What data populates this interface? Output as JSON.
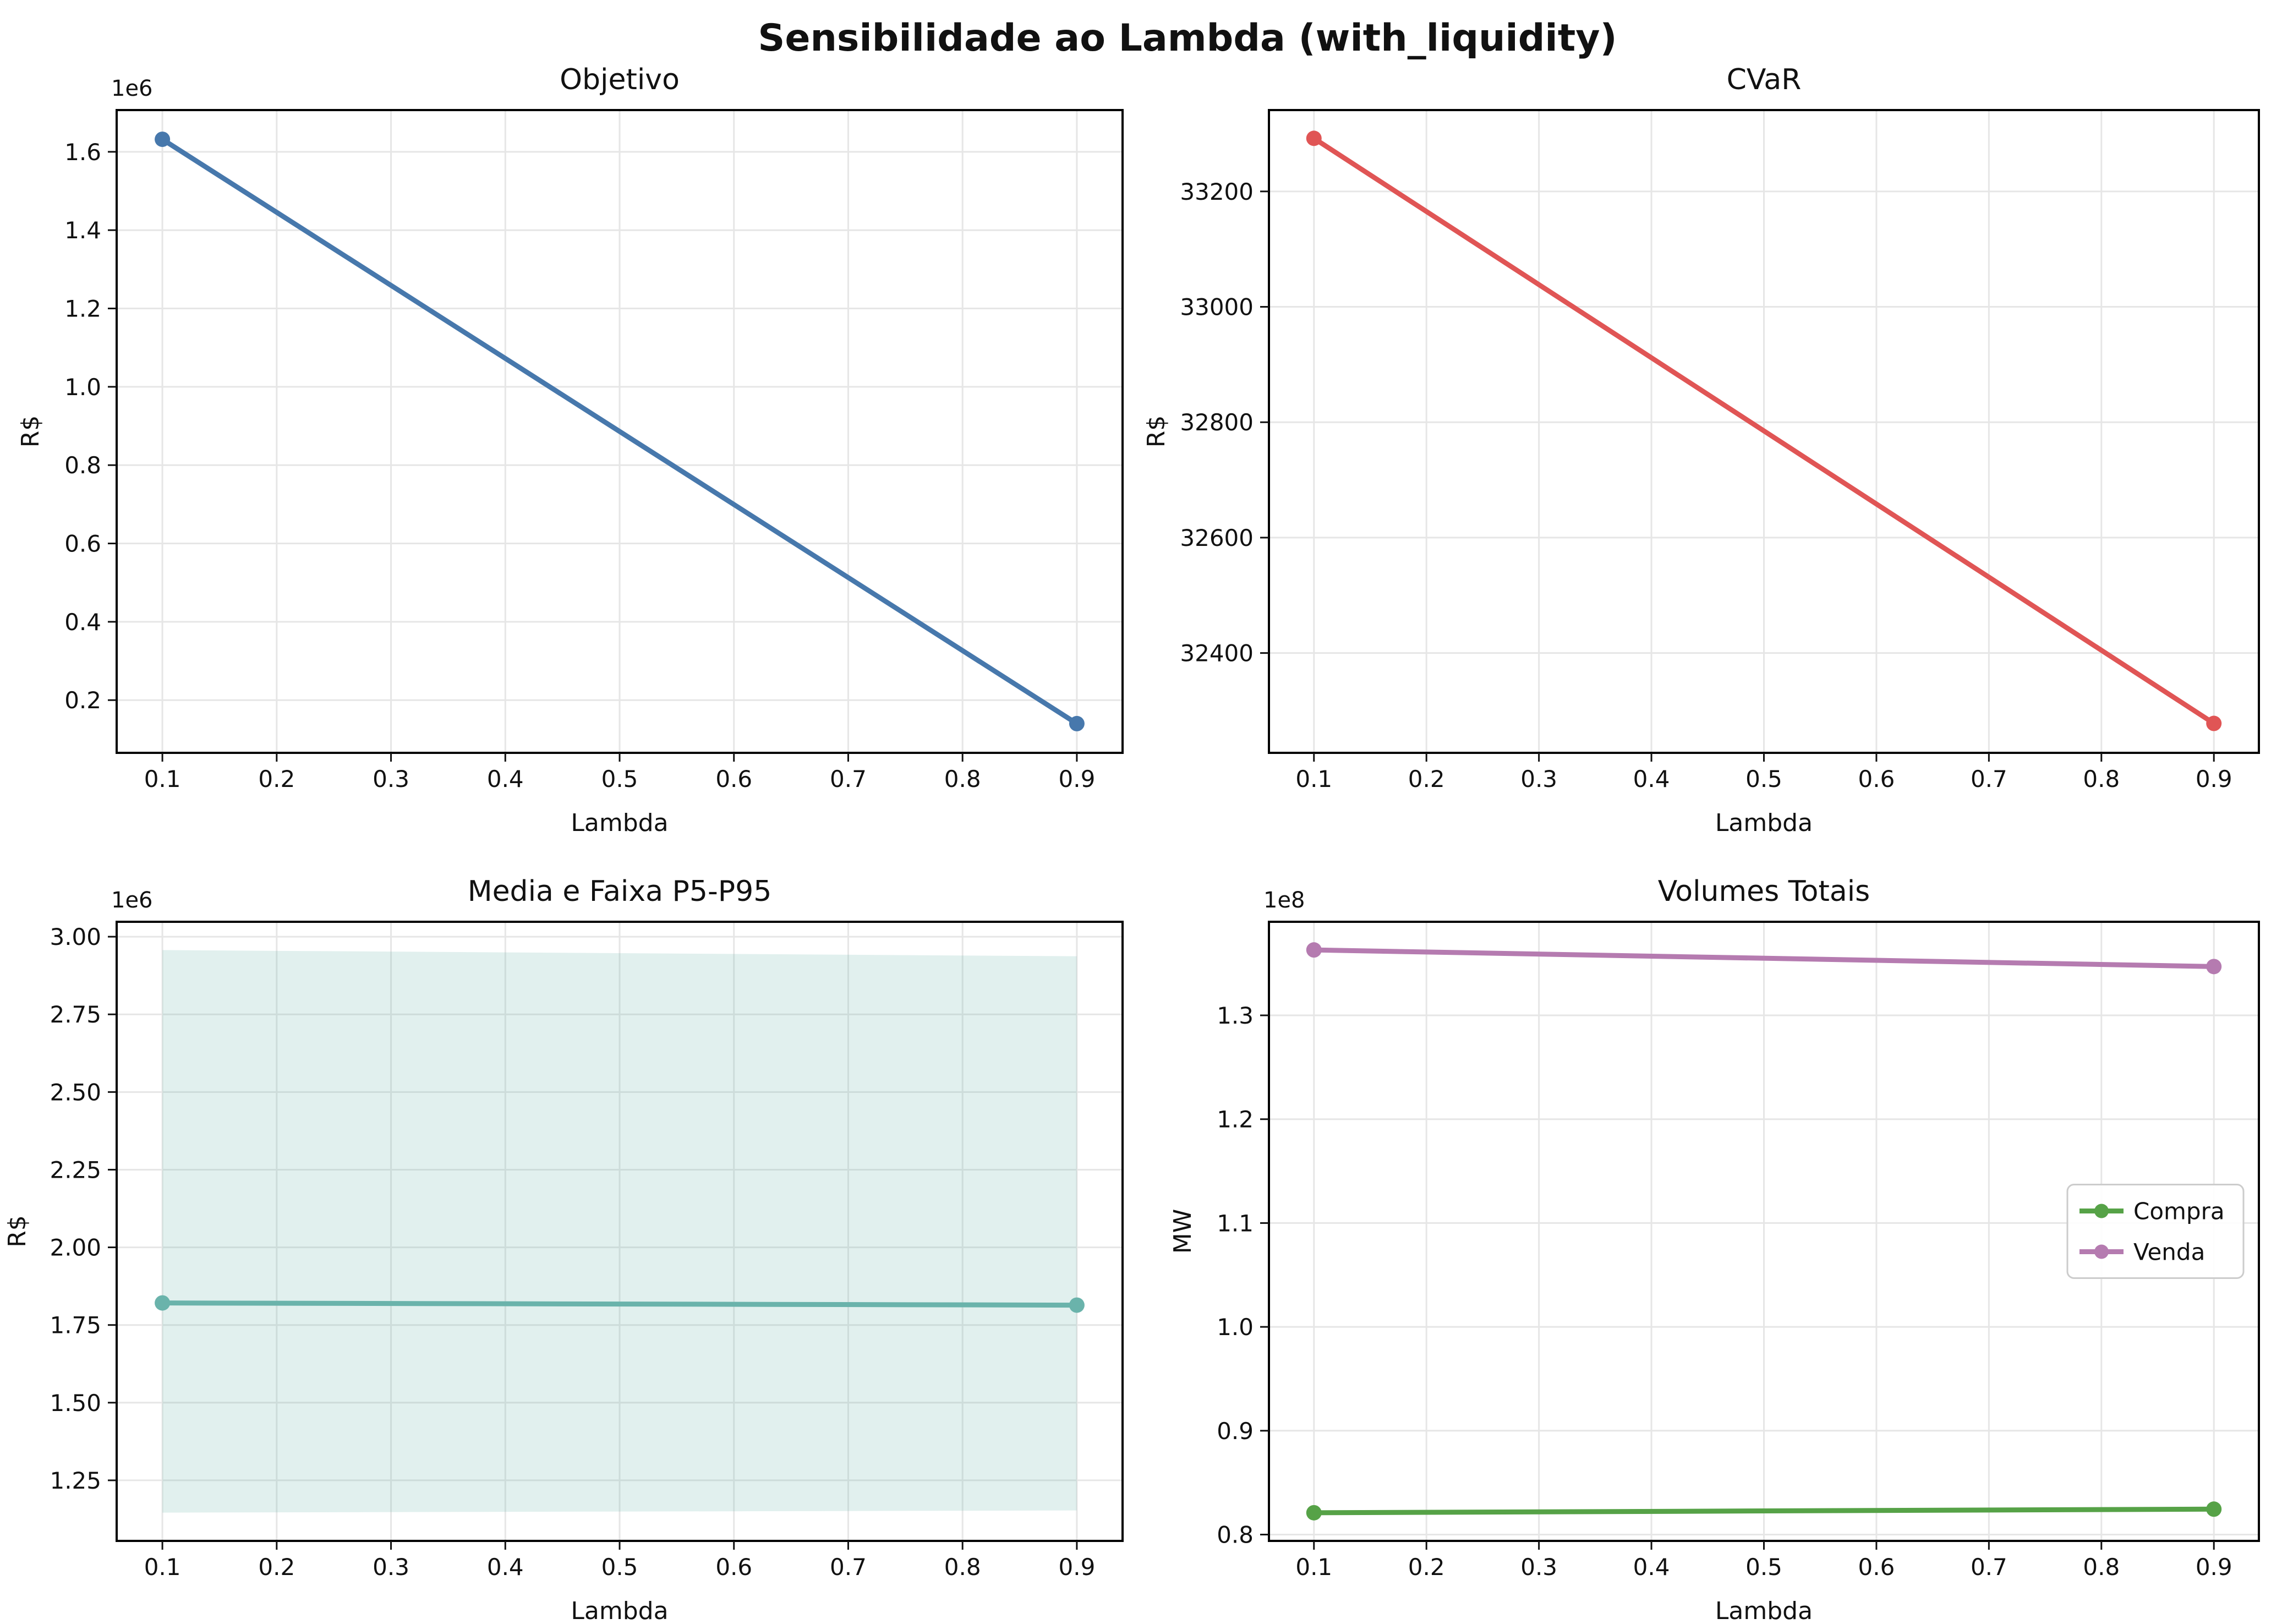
{
  "figure": {
    "title": "Sensibilidade ao Lambda (with_liquidity)"
  },
  "colors": {
    "objetivo_line": "#4778ac",
    "cvar_line": "#e05555",
    "media_line": "#6ab3ab",
    "band_fill": "#6ab3ab",
    "compra_line": "#56a247",
    "venda_line": "#b57bb0",
    "grid": "#e6e6e6",
    "spine": "#000000",
    "legend_border": "#cccccc"
  },
  "chart_data": [
    {
      "id": "objetivo",
      "type": "line",
      "title": "Objetivo",
      "xlabel": "Lambda",
      "ylabel": "R$",
      "x": [
        0.1,
        0.9
      ],
      "xlim": [
        0.06,
        0.94
      ],
      "xticks": [
        0.1,
        0.2,
        0.3,
        0.4,
        0.5,
        0.6,
        0.7,
        0.8,
        0.9
      ],
      "xtick_labels": [
        "0.1",
        "0.2",
        "0.3",
        "0.4",
        "0.5",
        "0.6",
        "0.7",
        "0.8",
        "0.9"
      ],
      "ylim": [
        65400,
        1706600
      ],
      "yticks": [
        200000,
        400000,
        600000,
        800000,
        1000000,
        1200000,
        1400000,
        1600000
      ],
      "ytick_labels": [
        "0.2",
        "0.4",
        "0.6",
        "0.8",
        "1.0",
        "1.2",
        "1.4",
        "1.6"
      ],
      "y_offset_text": "1e6",
      "grid": true,
      "series": [
        {
          "name": "Objetivo",
          "color": "#4778ac",
          "values": [
            1632000,
            140000
          ]
        }
      ]
    },
    {
      "id": "cvar",
      "type": "line",
      "title": "CVaR",
      "xlabel": "Lambda",
      "ylabel": "R$",
      "x": [
        0.1,
        0.9
      ],
      "xlim": [
        0.06,
        0.94
      ],
      "xticks": [
        0.1,
        0.2,
        0.3,
        0.4,
        0.5,
        0.6,
        0.7,
        0.8,
        0.9
      ],
      "xtick_labels": [
        "0.1",
        "0.2",
        "0.3",
        "0.4",
        "0.5",
        "0.6",
        "0.7",
        "0.8",
        "0.9"
      ],
      "ylim": [
        32227,
        33341
      ],
      "yticks": [
        32400,
        32600,
        32800,
        33000,
        33200
      ],
      "ytick_labels": [
        "32400",
        "32600",
        "32800",
        "33000",
        "33200"
      ],
      "y_offset_text": "",
      "grid": true,
      "series": [
        {
          "name": "CVaR",
          "color": "#e05555",
          "values": [
            33292,
            32278
          ]
        }
      ]
    },
    {
      "id": "media",
      "type": "line",
      "title": "Media e Faixa P5-P95",
      "xlabel": "Lambda",
      "ylabel": "R$",
      "x": [
        0.1,
        0.9
      ],
      "xlim": [
        0.06,
        0.94
      ],
      "xticks": [
        0.1,
        0.2,
        0.3,
        0.4,
        0.5,
        0.6,
        0.7,
        0.8,
        0.9
      ],
      "xtick_labels": [
        "0.1",
        "0.2",
        "0.3",
        "0.4",
        "0.5",
        "0.6",
        "0.7",
        "0.8",
        "0.9"
      ],
      "ylim": [
        1055000,
        3048000
      ],
      "yticks": [
        1250000,
        1500000,
        1750000,
        2000000,
        2250000,
        2500000,
        2750000,
        3000000
      ],
      "ytick_labels": [
        "1.25",
        "1.50",
        "1.75",
        "2.00",
        "2.25",
        "2.50",
        "2.75",
        "3.00"
      ],
      "y_offset_text": "1e6",
      "grid": true,
      "band": {
        "name": "Faixa P5-P95",
        "color": "#6ab3ab",
        "opacity": 0.2,
        "upper": [
          2957000,
          2937000
        ],
        "lower": [
          1146000,
          1153000
        ]
      },
      "series": [
        {
          "name": "Media",
          "color": "#6ab3ab",
          "values": [
            1821000,
            1814000
          ]
        }
      ]
    },
    {
      "id": "volumes",
      "type": "line",
      "title": "Volumes Totais",
      "xlabel": "Lambda",
      "ylabel": "MW",
      "x": [
        0.1,
        0.9
      ],
      "xlim": [
        0.06,
        0.94
      ],
      "xticks": [
        0.1,
        0.2,
        0.3,
        0.4,
        0.5,
        0.6,
        0.7,
        0.8,
        0.9
      ],
      "xtick_labels": [
        "0.1",
        "0.2",
        "0.3",
        "0.4",
        "0.5",
        "0.6",
        "0.7",
        "0.8",
        "0.9"
      ],
      "ylim": [
        79390000,
        139010000
      ],
      "yticks": [
        80000000,
        90000000,
        100000000,
        110000000,
        120000000,
        130000000
      ],
      "ytick_labels": [
        "0.8",
        "0.9",
        "1.0",
        "1.1",
        "1.2",
        "1.3"
      ],
      "y_offset_text": "1e8",
      "grid": true,
      "legend": {
        "position": "center-right",
        "labels": [
          "Compra",
          "Venda"
        ]
      },
      "series": [
        {
          "name": "Compra",
          "color": "#56a247",
          "values": [
            82100000,
            82450000
          ]
        },
        {
          "name": "Venda",
          "color": "#b57bb0",
          "values": [
            136300000,
            134700000
          ]
        }
      ]
    }
  ]
}
